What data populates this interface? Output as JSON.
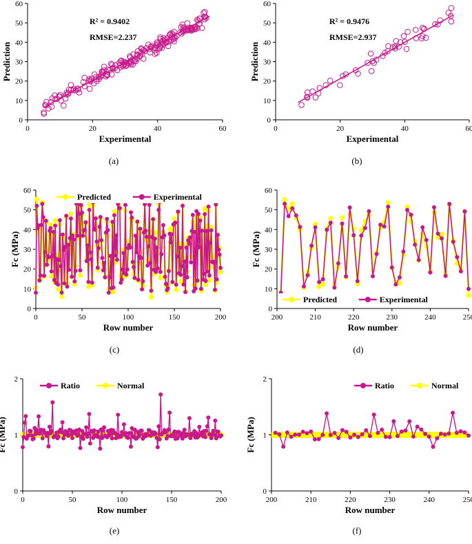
{
  "colors": {
    "magenta": "#C8198C",
    "yellow": "#FFFF00",
    "axis": "#000000",
    "gridline": "#000000"
  },
  "chart_data": [
    {
      "type": "scatter",
      "id": "a",
      "panel_label": "(a)",
      "xlabel": "Experimental",
      "ylabel": "Prediction",
      "xlim": [
        0,
        60
      ],
      "ylim": [
        0,
        60
      ],
      "xticks": [
        "0",
        "20",
        "40",
        "60"
      ],
      "yticks": [
        "0",
        "10",
        "20",
        "30",
        "40",
        "50",
        "60"
      ],
      "annotations": [
        "R² = 0.9402",
        "RMSE=2.237"
      ],
      "trendline": {
        "x": [
          5,
          56
        ],
        "y": [
          6.5,
          53.5
        ]
      },
      "seed": 11,
      "n": 200,
      "x_range": [
        5,
        55
      ],
      "noise": 3.2
    },
    {
      "type": "scatter",
      "id": "b",
      "panel_label": "(b)",
      "xlabel": "Experimental",
      "ylabel": "Prediction",
      "xlim": [
        0,
        60
      ],
      "ylim": [
        0,
        60
      ],
      "xticks": [
        "0",
        "20",
        "40",
        "60"
      ],
      "yticks": [
        "0",
        "10",
        "20",
        "30",
        "40",
        "50",
        "60"
      ],
      "annotations": [
        "R² = 0.9476",
        "RMSE=2.937"
      ],
      "trendline": {
        "x": [
          7,
          55
        ],
        "y": [
          9,
          54
        ]
      },
      "seed": 23,
      "n": 50,
      "x_range": [
        8,
        55
      ],
      "noise": 3.5
    },
    {
      "type": "line",
      "id": "c",
      "panel_label": "(c)",
      "xlabel": "Row number",
      "ylabel": "Fc (MPa)",
      "xlim": [
        0,
        200
      ],
      "ylim": [
        0,
        60
      ],
      "xticks": [
        "0",
        "50",
        "100",
        "150",
        "200"
      ],
      "yticks": [
        "0",
        "10",
        "20",
        "30",
        "40",
        "50",
        "60"
      ],
      "legend": [
        "Predicted",
        "Experimental"
      ],
      "legend_position": "top",
      "seed": 37,
      "x_start": 0,
      "n": 201
    },
    {
      "type": "line",
      "id": "d",
      "panel_label": "(d)",
      "xlabel": "Row number",
      "ylabel": "Fc (MPa)",
      "xlim": [
        200,
        250
      ],
      "ylim": [
        0,
        60
      ],
      "xticks": [
        "200",
        "210",
        "220",
        "230",
        "240",
        "250"
      ],
      "yticks": [
        "0",
        "10",
        "20",
        "30",
        "40",
        "50",
        "60"
      ],
      "legend": [
        "Predicted",
        "Experimental"
      ],
      "legend_position": "bottom",
      "seed": 41,
      "x_start": 201,
      "n": 50
    },
    {
      "type": "line",
      "id": "e",
      "panel_label": "(e)",
      "xlabel": "Row number",
      "ylabel": "Fc (MPa)",
      "xlim": [
        0,
        200
      ],
      "ylim": [
        0,
        2
      ],
      "xticks": [
        "0",
        "50",
        "100",
        "150",
        "200"
      ],
      "yticks": [
        "0",
        "1",
        "2"
      ],
      "legend": [
        "Ratio",
        "Normal"
      ],
      "legend_position": "top",
      "seed": 53,
      "x_start": 0,
      "n": 201,
      "normal_value": 1
    },
    {
      "type": "line",
      "id": "f",
      "panel_label": "(f)",
      "xlabel": "Row number",
      "ylabel": "Fc (MPa)",
      "xlim": [
        200,
        250
      ],
      "ylim": [
        0,
        2
      ],
      "xticks": [
        "200",
        "210",
        "220",
        "230",
        "240",
        "250"
      ],
      "yticks": [
        "0",
        "1",
        "2"
      ],
      "legend": [
        "Ratio",
        "Normal"
      ],
      "legend_position": "top",
      "seed": 61,
      "x_start": 201,
      "n": 50,
      "normal_value": 1
    }
  ]
}
